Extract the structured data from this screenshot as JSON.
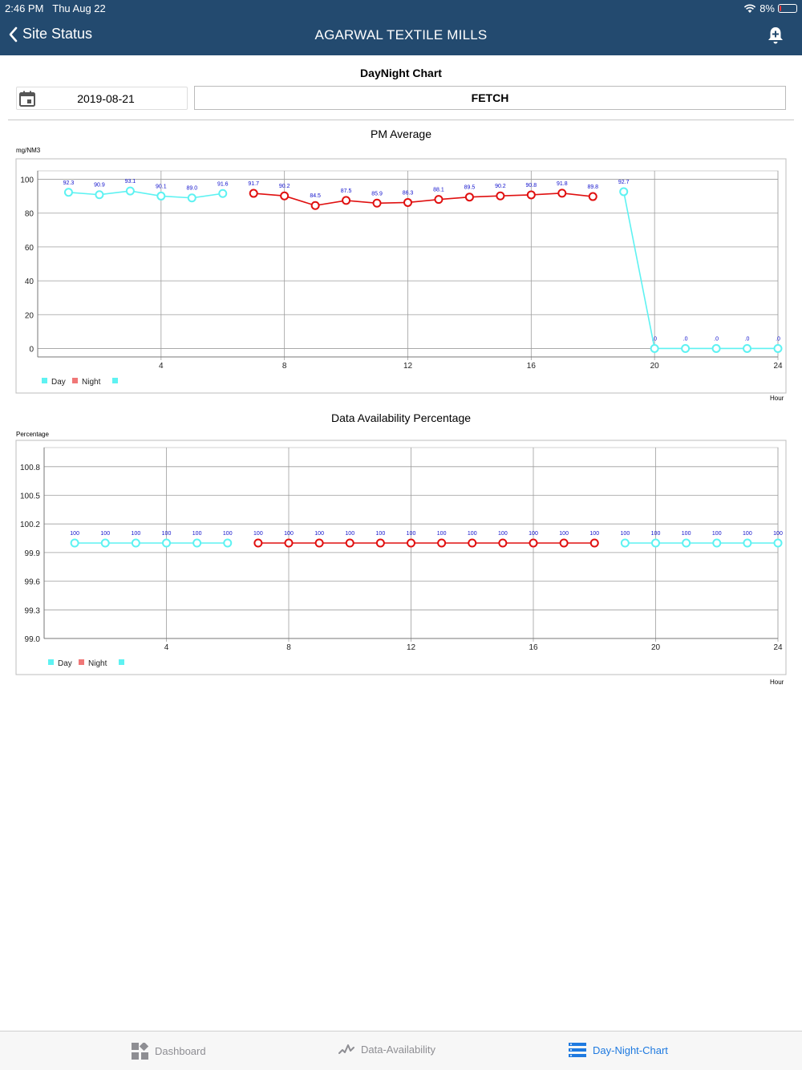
{
  "status_bar": {
    "time": "2:46 PM",
    "date": "Thu Aug 22",
    "battery": "8%",
    "battery_level": 0.08
  },
  "nav": {
    "back_label": "Site Status",
    "title": "AGARWAL TEXTILE MILLS",
    "bell_icon": "add-alert-icon"
  },
  "page": {
    "title": "DayNight Chart",
    "date_value": "2019-08-21",
    "fetch_label": "FETCH",
    "calendar_icon": "calendar-icon"
  },
  "colors": {
    "header": "#234a6f",
    "day": "#5ef2f2",
    "night": "#e01010",
    "night_legend": "#f07777",
    "value_label": "#1010cc",
    "active_tab": "#1f7ae0"
  },
  "charts": [
    {
      "title": "PM Average",
      "y_unit": "mg/NM3",
      "x_unit": "Hour",
      "legend": [
        "Day",
        "Night",
        ""
      ]
    },
    {
      "title": "Data Availability Percentage",
      "y_unit": "Percentage",
      "x_unit": "Hour",
      "legend": [
        "Day",
        "Night",
        ""
      ]
    }
  ],
  "chart_data": [
    {
      "type": "line",
      "title": "PM Average",
      "xlabel": "Hour",
      "ylabel": "mg/NM3",
      "x_ticks": [
        "4",
        "8",
        "12",
        "16",
        "20",
        "24"
      ],
      "y_ticks": [
        "0",
        "20",
        "40",
        "60",
        "80",
        "100"
      ],
      "xlim": [
        0,
        24
      ],
      "ylim": [
        -5,
        105
      ],
      "grid": true,
      "legend_position": "bottom-left",
      "series": [
        {
          "name": "Day",
          "color": "#5ef2f2",
          "x": [
            1,
            2,
            3,
            4,
            5,
            6
          ],
          "y": [
            92.3,
            90.9,
            93.1,
            90.1,
            89.0,
            91.6
          ],
          "labels": [
            "92.3",
            "90.9",
            "93.1",
            "90.1",
            "89.0",
            "91.6"
          ]
        },
        {
          "name": "Night",
          "color": "#e01010",
          "x": [
            7,
            8,
            9,
            10,
            11,
            12,
            13,
            14,
            15,
            16,
            17,
            18
          ],
          "y": [
            91.7,
            90.2,
            84.5,
            87.5,
            85.9,
            86.3,
            88.1,
            89.5,
            90.2,
            90.8,
            91.8,
            89.8
          ],
          "labels": [
            "91.7",
            "90.2",
            "84.5",
            "87.5",
            "85.9",
            "86.3",
            "88.1",
            "89.5",
            "90.2",
            "90.8",
            "91.8",
            "89.8"
          ]
        },
        {
          "name": "",
          "color": "#5ef2f2",
          "x": [
            19,
            20,
            21,
            22,
            23,
            24
          ],
          "y": [
            92.7,
            0,
            0,
            0,
            0,
            0
          ],
          "labels": [
            "92.7",
            ".0",
            ".0",
            ".0",
            ".0",
            ".0"
          ]
        }
      ]
    },
    {
      "type": "line",
      "title": "Data Availability Percentage",
      "xlabel": "Hour",
      "ylabel": "Percentage",
      "x_ticks": [
        "4",
        "8",
        "12",
        "16",
        "20",
        "24"
      ],
      "y_ticks": [
        "99.0",
        "99.3",
        "99.6",
        "99.9",
        "100.2",
        "100.5",
        "100.8"
      ],
      "xlim": [
        0,
        24
      ],
      "ylim": [
        99.0,
        101.0
      ],
      "grid": true,
      "legend_position": "bottom-left",
      "series": [
        {
          "name": "Day",
          "color": "#5ef2f2",
          "x": [
            1,
            2,
            3,
            4,
            5,
            6
          ],
          "y": [
            100,
            100,
            100,
            100,
            100,
            100
          ],
          "labels": [
            "100",
            "100",
            "100",
            "100",
            "100",
            "100"
          ]
        },
        {
          "name": "Night",
          "color": "#e01010",
          "x": [
            7,
            8,
            9,
            10,
            11,
            12,
            13,
            14,
            15,
            16,
            17,
            18
          ],
          "y": [
            100,
            100,
            100,
            100,
            100,
            100,
            100,
            100,
            100,
            100,
            100,
            100
          ],
          "labels": [
            "100",
            "100",
            "100",
            "100",
            "100",
            "100",
            "100",
            "100",
            "100",
            "100",
            "100",
            "100"
          ]
        },
        {
          "name": "",
          "color": "#5ef2f2",
          "x": [
            19,
            20,
            21,
            22,
            23,
            24
          ],
          "y": [
            100,
            100,
            100,
            100,
            100,
            100
          ],
          "labels": [
            "100",
            "100",
            "100",
            "100",
            "100",
            "100"
          ]
        }
      ]
    }
  ],
  "tabs": [
    {
      "label": "Dashboard",
      "icon": "dashboard-icon",
      "active": false
    },
    {
      "label": "Data-Availability",
      "icon": "data-availability-icon",
      "active": false
    },
    {
      "label": "Day-Night-Chart",
      "icon": "day-night-chart-icon",
      "active": true
    }
  ]
}
